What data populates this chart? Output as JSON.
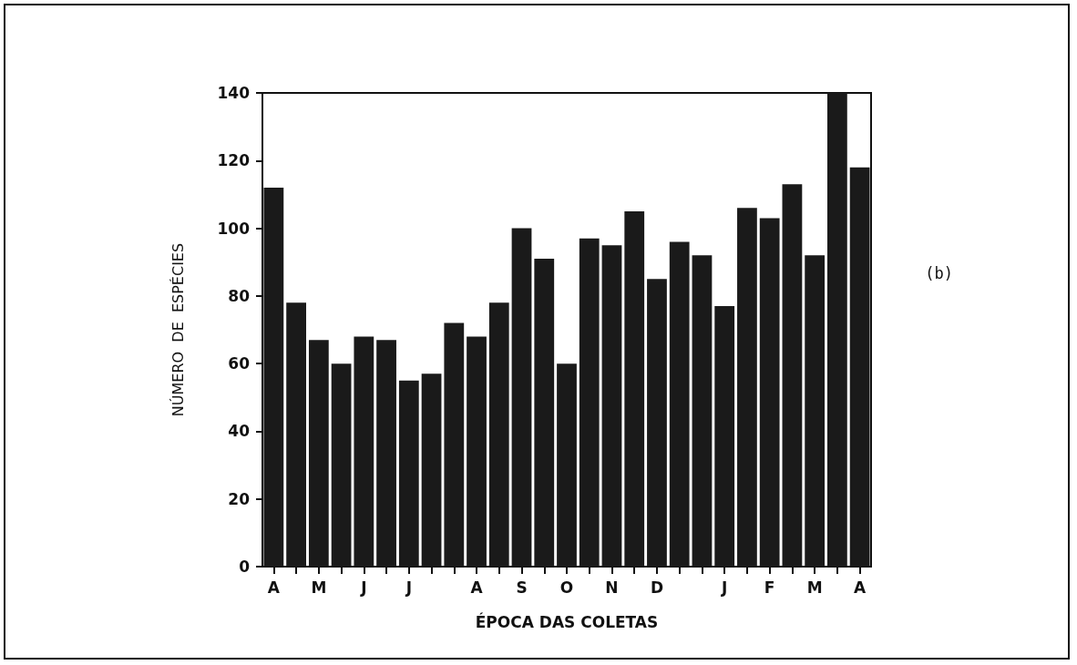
{
  "chart_data": {
    "type": "bar",
    "xlabel": "ÉPOCA DAS COLETAS",
    "ylabel": "NÚMERO  DE  ESPÉCIES",
    "categories": [
      "A",
      null,
      "M",
      null,
      "J",
      null,
      "J",
      null,
      null,
      "A",
      null,
      "S",
      null,
      "O",
      null,
      "N",
      null,
      "D",
      null,
      null,
      "J",
      null,
      "F",
      null,
      "M",
      null,
      "A"
    ],
    "values": [
      112,
      78,
      67,
      60,
      68,
      67,
      55,
      57,
      72,
      68,
      78,
      100,
      91,
      60,
      97,
      95,
      105,
      85,
      96,
      92,
      77,
      106,
      103,
      113,
      92,
      140,
      118
    ],
    "color": "#1a1a1a",
    "ylim": [
      0,
      140
    ],
    "yticks": [
      0,
      20,
      40,
      60,
      80,
      100,
      120,
      140
    ],
    "grid": false,
    "annotations": [
      "(b)"
    ]
  }
}
